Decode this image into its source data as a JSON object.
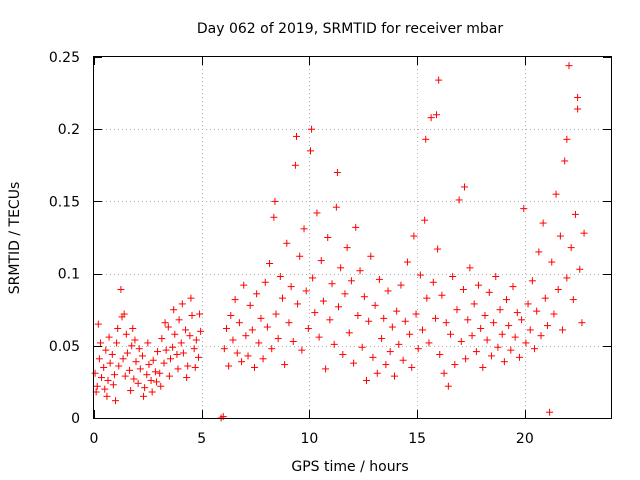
{
  "chart_data": {
    "type": "scatter",
    "title": "Day 062 of 2019, SRMTID for receiver mbar",
    "xlabel": "GPS time / hours",
    "ylabel": "SRMTID / TECUs",
    "xlim": [
      0,
      24
    ],
    "ylim": [
      0,
      0.25
    ],
    "x_ticks": [
      0,
      5,
      10,
      15,
      20
    ],
    "x_tick_labels": [
      "0",
      "5",
      "10",
      "15",
      "20"
    ],
    "y_ticks": [
      0,
      0.05,
      0.1,
      0.15,
      0.2,
      0.25
    ],
    "y_tick_labels": [
      "0",
      "0.05",
      "0.1",
      "0.15",
      "0.2",
      "0.25"
    ],
    "grid": true,
    "marker": "+",
    "color": "#ff0000",
    "series": [
      {
        "name": "SRMTID",
        "points": [
          [
            0.05,
            0.031
          ],
          [
            0.15,
            0.022
          ],
          [
            0.25,
            0.041
          ],
          [
            0.35,
            0.028
          ],
          [
            0.45,
            0.035
          ],
          [
            0.55,
            0.047
          ],
          [
            0.65,
            0.026
          ],
          [
            0.75,
            0.038
          ],
          [
            0.85,
            0.044
          ],
          [
            0.95,
            0.03
          ],
          [
            1.05,
            0.052
          ],
          [
            1.15,
            0.036
          ],
          [
            1.25,
            0.089
          ],
          [
            1.35,
            0.041
          ],
          [
            1.45,
            0.029
          ],
          [
            1.55,
            0.045
          ],
          [
            1.65,
            0.033
          ],
          [
            1.75,
            0.05
          ],
          [
            1.85,
            0.027
          ],
          [
            1.95,
            0.039
          ],
          [
            2.05,
            0.024
          ],
          [
            2.15,
            0.034
          ],
          [
            2.25,
            0.043
          ],
          [
            2.35,
            0.021
          ],
          [
            2.45,
            0.03
          ],
          [
            2.55,
            0.037
          ],
          [
            2.65,
            0.026
          ],
          [
            2.75,
            0.04
          ],
          [
            2.85,
            0.032
          ],
          [
            2.95,
            0.046
          ],
          [
            3.05,
            0.031
          ],
          [
            3.15,
            0.055
          ],
          [
            3.25,
            0.038
          ],
          [
            3.35,
            0.047
          ],
          [
            3.45,
            0.063
          ],
          [
            3.55,
            0.041
          ],
          [
            3.65,
            0.049
          ],
          [
            3.75,
            0.058
          ],
          [
            3.85,
            0.044
          ],
          [
            3.95,
            0.068
          ],
          [
            4.05,
            0.052
          ],
          [
            4.15,
            0.045
          ],
          [
            4.25,
            0.061
          ],
          [
            4.35,
            0.036
          ],
          [
            4.45,
            0.057
          ],
          [
            4.55,
            0.071
          ],
          [
            4.65,
            0.048
          ],
          [
            4.75,
            0.054
          ],
          [
            4.85,
            0.042
          ],
          [
            4.95,
            0.06
          ],
          [
            0.1,
            0.018
          ],
          [
            0.3,
            0.052
          ],
          [
            0.5,
            0.02
          ],
          [
            0.7,
            0.056
          ],
          [
            0.9,
            0.023
          ],
          [
            1.1,
            0.062
          ],
          [
            1.3,
            0.07
          ],
          [
            1.5,
            0.058
          ],
          [
            1.7,
            0.019
          ],
          [
            1.9,
            0.054
          ],
          [
            2.1,
            0.048
          ],
          [
            2.3,
            0.015
          ],
          [
            2.5,
            0.052
          ],
          [
            2.7,
            0.018
          ],
          [
            2.9,
            0.025
          ],
          [
            3.1,
            0.022
          ],
          [
            3.3,
            0.066
          ],
          [
            3.5,
            0.029
          ],
          [
            3.7,
            0.075
          ],
          [
            3.9,
            0.034
          ],
          [
            4.1,
            0.079
          ],
          [
            4.3,
            0.028
          ],
          [
            4.5,
            0.083
          ],
          [
            4.7,
            0.035
          ],
          [
            4.9,
            0.072
          ],
          [
            0.2,
            0.065
          ],
          [
            0.6,
            0.015
          ],
          [
            1.0,
            0.012
          ],
          [
            1.4,
            0.072
          ],
          [
            1.8,
            0.062
          ],
          [
            5.9,
            0.0
          ],
          [
            6.0,
            0.001
          ],
          [
            6.05,
            0.048
          ],
          [
            6.15,
            0.062
          ],
          [
            6.25,
            0.036
          ],
          [
            6.35,
            0.071
          ],
          [
            6.45,
            0.054
          ],
          [
            6.55,
            0.082
          ],
          [
            6.65,
            0.045
          ],
          [
            6.75,
            0.066
          ],
          [
            6.85,
            0.039
          ],
          [
            6.95,
            0.092
          ],
          [
            7.05,
            0.057
          ],
          [
            7.15,
            0.043
          ],
          [
            7.25,
            0.078
          ],
          [
            7.35,
            0.061
          ],
          [
            7.45,
            0.035
          ],
          [
            7.55,
            0.086
          ],
          [
            7.65,
            0.052
          ],
          [
            7.75,
            0.069
          ],
          [
            7.85,
            0.041
          ],
          [
            7.95,
            0.094
          ],
          [
            8.05,
            0.063
          ],
          [
            8.15,
            0.107
          ],
          [
            8.25,
            0.048
          ],
          [
            8.35,
            0.139
          ],
          [
            8.45,
            0.072
          ],
          [
            8.55,
            0.055
          ],
          [
            8.65,
            0.098
          ],
          [
            8.75,
            0.083
          ],
          [
            8.85,
            0.037
          ],
          [
            8.95,
            0.121
          ],
          [
            9.05,
            0.066
          ],
          [
            9.15,
            0.091
          ],
          [
            9.25,
            0.053
          ],
          [
            9.35,
            0.175
          ],
          [
            9.45,
            0.079
          ],
          [
            9.55,
            0.112
          ],
          [
            9.65,
            0.047
          ],
          [
            9.75,
            0.131
          ],
          [
            9.85,
            0.088
          ],
          [
            9.95,
            0.062
          ],
          [
            10.05,
            0.185
          ],
          [
            10.15,
            0.097
          ],
          [
            10.25,
            0.073
          ],
          [
            10.35,
            0.142
          ],
          [
            10.45,
            0.056
          ],
          [
            10.55,
            0.109
          ],
          [
            10.65,
            0.081
          ],
          [
            10.75,
            0.034
          ],
          [
            10.85,
            0.125
          ],
          [
            10.95,
            0.068
          ],
          [
            11.05,
            0.093
          ],
          [
            11.15,
            0.051
          ],
          [
            11.25,
            0.146
          ],
          [
            11.35,
            0.077
          ],
          [
            11.45,
            0.104
          ],
          [
            11.55,
            0.044
          ],
          [
            11.65,
            0.086
          ],
          [
            11.75,
            0.118
          ],
          [
            11.85,
            0.059
          ],
          [
            11.95,
            0.095
          ],
          [
            12.05,
            0.038
          ],
          [
            12.15,
            0.132
          ],
          [
            12.25,
            0.071
          ],
          [
            12.35,
            0.102
          ],
          [
            12.45,
            0.049
          ],
          [
            12.55,
            0.084
          ],
          [
            12.65,
            0.026
          ],
          [
            12.75,
            0.067
          ],
          [
            12.85,
            0.112
          ],
          [
            12.95,
            0.042
          ],
          [
            13.05,
            0.078
          ],
          [
            13.15,
            0.031
          ],
          [
            13.25,
            0.096
          ],
          [
            13.35,
            0.055
          ],
          [
            13.45,
            0.069
          ],
          [
            13.55,
            0.037
          ],
          [
            13.65,
            0.088
          ],
          [
            13.75,
            0.046
          ],
          [
            13.85,
            0.063
          ],
          [
            13.95,
            0.029
          ],
          [
            14.05,
            0.074
          ],
          [
            14.15,
            0.051
          ],
          [
            14.25,
            0.092
          ],
          [
            14.35,
            0.04
          ],
          [
            14.45,
            0.067
          ],
          [
            14.55,
            0.108
          ],
          [
            14.65,
            0.058
          ],
          [
            14.75,
            0.035
          ],
          [
            14.85,
            0.126
          ],
          [
            14.95,
            0.072
          ],
          [
            15.05,
            0.048
          ],
          [
            15.15,
            0.099
          ],
          [
            15.25,
            0.061
          ],
          [
            15.35,
            0.137
          ],
          [
            15.45,
            0.083
          ],
          [
            15.55,
            0.052
          ],
          [
            15.65,
            0.208
          ],
          [
            15.75,
            0.094
          ],
          [
            15.85,
            0.069
          ],
          [
            15.95,
            0.117
          ],
          [
            16.05,
            0.044
          ],
          [
            16.15,
            0.085
          ],
          [
            16.25,
            0.031
          ],
          [
            16.35,
            0.066
          ],
          [
            16.45,
            0.022
          ],
          [
            16.55,
            0.058
          ],
          [
            16.65,
            0.098
          ],
          [
            16.75,
            0.037
          ],
          [
            16.85,
            0.075
          ],
          [
            16.95,
            0.151
          ],
          [
            17.05,
            0.053
          ],
          [
            17.15,
            0.089
          ],
          [
            17.25,
            0.041
          ],
          [
            17.35,
            0.068
          ],
          [
            17.45,
            0.104
          ],
          [
            17.55,
            0.057
          ],
          [
            17.65,
            0.079
          ],
          [
            17.75,
            0.046
          ],
          [
            17.85,
            0.092
          ],
          [
            17.95,
            0.062
          ],
          [
            18.05,
            0.035
          ],
          [
            18.15,
            0.071
          ],
          [
            18.25,
            0.054
          ],
          [
            18.35,
            0.087
          ],
          [
            18.45,
            0.043
          ],
          [
            18.55,
            0.066
          ],
          [
            18.65,
            0.098
          ],
          [
            18.75,
            0.049
          ],
          [
            18.85,
            0.075
          ],
          [
            18.95,
            0.058
          ],
          [
            19.05,
            0.039
          ],
          [
            19.15,
            0.082
          ],
          [
            19.25,
            0.064
          ],
          [
            19.35,
            0.047
          ],
          [
            19.45,
            0.091
          ],
          [
            19.55,
            0.056
          ],
          [
            19.65,
            0.073
          ],
          [
            19.75,
            0.042
          ],
          [
            19.85,
            0.068
          ],
          [
            19.95,
            0.145
          ],
          [
            20.05,
            0.052
          ],
          [
            20.15,
            0.079
          ],
          [
            20.25,
            0.061
          ],
          [
            20.35,
            0.095
          ],
          [
            20.45,
            0.048
          ],
          [
            20.55,
            0.074
          ],
          [
            20.65,
            0.115
          ],
          [
            20.75,
            0.057
          ],
          [
            20.85,
            0.135
          ],
          [
            20.95,
            0.083
          ],
          [
            21.05,
            0.064
          ],
          [
            21.15,
            0.004
          ],
          [
            21.25,
            0.108
          ],
          [
            21.35,
            0.072
          ],
          [
            21.45,
            0.155
          ],
          [
            21.55,
            0.089
          ],
          [
            21.65,
            0.126
          ],
          [
            21.75,
            0.061
          ],
          [
            21.85,
            0.178
          ],
          [
            21.95,
            0.097
          ],
          [
            22.05,
            0.244
          ],
          [
            22.15,
            0.118
          ],
          [
            22.25,
            0.082
          ],
          [
            22.35,
            0.141
          ],
          [
            22.45,
            0.214
          ],
          [
            22.55,
            0.103
          ],
          [
            22.65,
            0.066
          ],
          [
            22.75,
            0.128
          ],
          [
            8.4,
            0.15
          ],
          [
            9.4,
            0.195
          ],
          [
            10.1,
            0.2
          ],
          [
            11.3,
            0.17
          ],
          [
            15.4,
            0.193
          ],
          [
            15.9,
            0.21
          ],
          [
            16.0,
            0.234
          ],
          [
            17.2,
            0.16
          ],
          [
            21.95,
            0.193
          ],
          [
            22.45,
            0.222
          ]
        ]
      }
    ]
  }
}
